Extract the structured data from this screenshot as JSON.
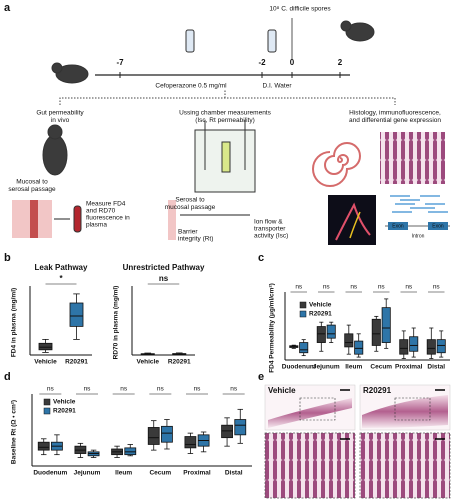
{
  "figure": {
    "panel_labels": [
      "a",
      "b",
      "c",
      "d",
      "e"
    ],
    "spores": "10⁸ C. difficile spores",
    "timeline_ticks": [
      -7,
      -2,
      0,
      2
    ],
    "cefoperazone": "Cefoperazone 0.5 mg/ml",
    "water": "D.I. Water",
    "gut_title": [
      "Gut permeability",
      "in vivo"
    ],
    "ussing_title": [
      "Ussing chamber measurements",
      "(Isc, Rt permeability)"
    ],
    "histology_title": [
      "Histology, immunofluorescence,",
      "and differential gene expression"
    ],
    "mucosal": [
      "Mucosal to",
      "serosal passage"
    ],
    "measure": [
      "Measure FD4",
      "and RD70",
      "fluorescence in",
      "plasma"
    ],
    "serosal": [
      "Serosal to",
      "mucosal passage"
    ],
    "ion_flow": [
      "Ion flow &",
      "transporter",
      "activity (Isc)"
    ],
    "barrier": [
      "Barrier",
      "integrity (Rt)"
    ],
    "gene_labels": [
      "Exon",
      "Intron",
      "Exon"
    ],
    "histology_labels": [
      "Vehicle",
      "R20291"
    ]
  },
  "chart_data": [
    {
      "type": "box",
      "title": "Leak Pathway",
      "y_label": "FD4 in plasma (mg/ml)",
      "categories": [
        "Vehicle",
        "R20291"
      ],
      "colors": [
        "#3a3a3a",
        "#2e75a8"
      ],
      "boxes": [
        {
          "min": 0.002,
          "q1": 0.004,
          "median": 0.006,
          "q3": 0.009,
          "max": 0.012
        },
        {
          "min": 0.012,
          "q1": 0.022,
          "median": 0.03,
          "q3": 0.04,
          "max": 0.047
        }
      ],
      "annotation": "*",
      "ylim": [
        0,
        0.05
      ]
    },
    {
      "type": "box",
      "title": "Unrestricted Pathway",
      "y_label": "RD70 in plasma (mg/ml)",
      "categories": [
        "Vehicle",
        "R20291"
      ],
      "colors": [
        "#3a3a3a",
        "#2e75a8"
      ],
      "boxes": [
        {
          "min": 0.0002,
          "q1": 0.0005,
          "median": 0.0008,
          "q3": 0.001,
          "max": 0.0015
        },
        {
          "min": 0.0002,
          "q1": 0.0005,
          "median": 0.0008,
          "q3": 0.0011,
          "max": 0.0016
        }
      ],
      "annotation": "ns",
      "ylim": [
        0,
        0.05
      ]
    },
    {
      "type": "box",
      "y_label": "FD4 Permeability (μg/ml/cm²)",
      "categories": [
        "Duodenum",
        "Jejunum",
        "Ileum",
        "Cecum",
        "Proximal",
        "Distal"
      ],
      "annotations": [
        "ns",
        "ns",
        "ns",
        "ns",
        "ns",
        "ns"
      ],
      "series": [
        {
          "name": "Vehicle",
          "color": "#3a3a3a",
          "boxes": [
            {
              "min": 4,
              "q1": 4.3,
              "median": 4.6,
              "q3": 4.9,
              "max": 5.1
            },
            {
              "min": 3,
              "q1": 6,
              "median": 9,
              "q3": 11.5,
              "max": 13
            },
            {
              "min": 2,
              "q1": 4.5,
              "median": 6,
              "q3": 9,
              "max": 12
            },
            {
              "min": 3,
              "q1": 5,
              "median": 9,
              "q3": 14,
              "max": 15
            },
            {
              "min": 0.5,
              "q1": 2,
              "median": 4,
              "q3": 7,
              "max": 10
            },
            {
              "min": 0.5,
              "q1": 2,
              "median": 4,
              "q3": 7,
              "max": 11
            }
          ]
        },
        {
          "name": "R20291",
          "color": "#2e75a8",
          "boxes": [
            {
              "min": 1.5,
              "q1": 2.5,
              "median": 3.5,
              "q3": 6,
              "max": 7
            },
            {
              "min": 6,
              "q1": 7.5,
              "median": 9,
              "q3": 12,
              "max": 13
            },
            {
              "min": 1,
              "q1": 2,
              "median": 4,
              "q3": 6.5,
              "max": 9
            },
            {
              "min": 4,
              "q1": 6,
              "median": 11,
              "q3": 18,
              "max": 21
            },
            {
              "min": 1,
              "q1": 3,
              "median": 5,
              "q3": 8,
              "max": 11
            },
            {
              "min": 1,
              "q1": 2.5,
              "median": 5,
              "q3": 7,
              "max": 10
            }
          ]
        }
      ],
      "ylim": [
        0,
        22
      ]
    },
    {
      "type": "box",
      "y_label": "Baseline Rt (Ω • cm²)",
      "categories": [
        "Duodenum",
        "Jejunum",
        "Ileum",
        "Cecum",
        "Proximal",
        "Distal"
      ],
      "annotations": [
        "ns",
        "ns",
        "ns",
        "ns",
        "ns",
        "ns"
      ],
      "series": [
        {
          "name": "Vehicle",
          "color": "#3a3a3a",
          "boxes": [
            {
              "min": 20,
              "q1": 28,
              "median": 33,
              "q3": 42,
              "max": 48
            },
            {
              "min": 15,
              "q1": 22,
              "median": 28,
              "q3": 35,
              "max": 40
            },
            {
              "min": 15,
              "q1": 20,
              "median": 25,
              "q3": 30,
              "max": 35
            },
            {
              "min": 28,
              "q1": 38,
              "median": 50,
              "q3": 68,
              "max": 80
            },
            {
              "min": 22,
              "q1": 32,
              "median": 38,
              "q3": 52,
              "max": 58
            },
            {
              "min": 35,
              "q1": 50,
              "median": 62,
              "q3": 72,
              "max": 85
            }
          ]
        },
        {
          "name": "R20291",
          "color": "#2e75a8",
          "boxes": [
            {
              "min": 20,
              "q1": 28,
              "median": 35,
              "q3": 42,
              "max": 55
            },
            {
              "min": 15,
              "q1": 18,
              "median": 22,
              "q3": 25,
              "max": 28
            },
            {
              "min": 18,
              "q1": 20,
              "median": 25,
              "q3": 32,
              "max": 38
            },
            {
              "min": 30,
              "q1": 42,
              "median": 58,
              "q3": 70,
              "max": 82
            },
            {
              "min": 25,
              "q1": 35,
              "median": 45,
              "q3": 55,
              "max": 60
            },
            {
              "min": 40,
              "q1": 55,
              "median": 72,
              "q3": 82,
              "max": 100
            }
          ]
        }
      ],
      "ylim": [
        0,
        120
      ]
    }
  ]
}
